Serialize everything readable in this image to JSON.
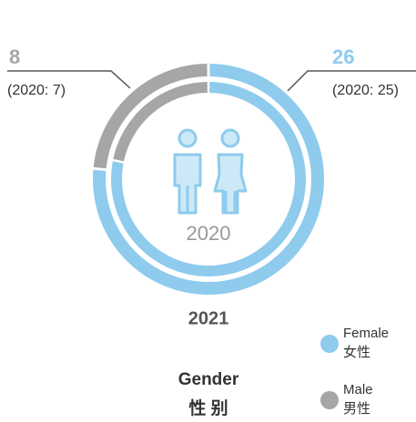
{
  "chart_data": {
    "type": "donut",
    "title": "Gender",
    "subtitle": "性 别",
    "categories": [
      "Female",
      "Male"
    ],
    "categories_zh": [
      "女性",
      "男性"
    ],
    "colors": [
      "#8ecbed",
      "#a6a6a6"
    ],
    "rings": [
      {
        "name": "2021",
        "values": [
          26,
          8
        ]
      },
      {
        "name": "2020",
        "values": [
          25,
          7
        ],
        "value_labels": [
          "(2020: 25)",
          "(2020: 7)"
        ]
      }
    ]
  }
}
